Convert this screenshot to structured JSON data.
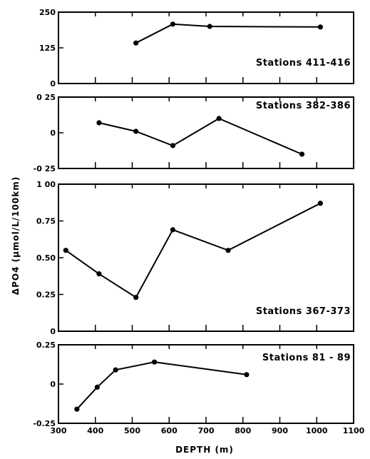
{
  "chart_data": {
    "type": "line",
    "ylabel": "ΔPO4 (μmol/L/100km)",
    "xlabel": "DEPTH (m)",
    "x_ticks": [
      "300",
      "400",
      "500",
      "600",
      "700",
      "800",
      "900",
      "1000",
      "1100"
    ],
    "xlim": [
      300,
      1100
    ],
    "panels": [
      {
        "label": "Stations 411-416",
        "ylim": [
          0,
          250
        ],
        "y_ticks": [
          "250",
          "125",
          "0"
        ],
        "x": [
          510,
          610,
          710,
          1010
        ],
        "y": [
          142,
          208,
          200,
          198
        ]
      },
      {
        "label": "Stations 382-386",
        "ylim": [
          -0.25,
          0.25
        ],
        "y_ticks": [
          "0 25",
          "0",
          "-0 25"
        ],
        "x": [
          410,
          510,
          610,
          735,
          960
        ],
        "y": [
          0.07,
          0.01,
          -0.09,
          0.1,
          -0.15
        ]
      },
      {
        "label": "Stations 367-373",
        "ylim": [
          0,
          1.0
        ],
        "y_ticks": [
          "1 00",
          "0.75",
          "0.50",
          "0.25",
          "0"
        ],
        "x": [
          320,
          410,
          510,
          610,
          760,
          1010
        ],
        "y": [
          0.55,
          0.39,
          0.23,
          0.69,
          0.55,
          0.87
        ]
      },
      {
        "label": "Stations 81 - 89",
        "ylim": [
          -0.25,
          0.25
        ],
        "y_ticks": [
          "0.25",
          "0",
          "-0.25"
        ],
        "x": [
          350,
          405,
          455,
          560,
          810
        ],
        "y": [
          -0.16,
          -0.02,
          0.09,
          0.14,
          0.06
        ]
      }
    ]
  }
}
